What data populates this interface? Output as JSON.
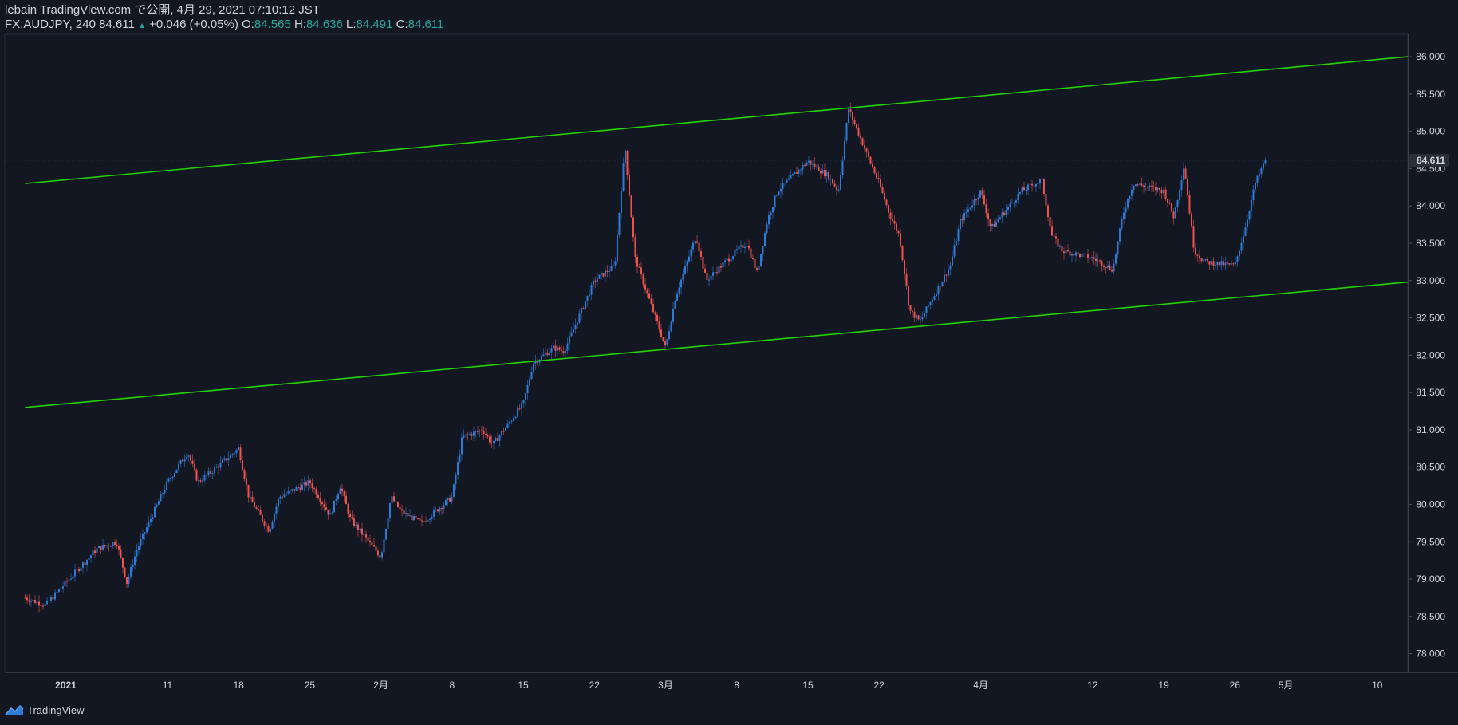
{
  "header": {
    "publisher": "lebain TradingView.com で公開, 4月 29, 2021 07:10:12 JST",
    "symbol": "FX:AUDJPY, 240",
    "last": "84.611",
    "change_arrow": "▲",
    "change": "+0.046 (+0.05%)",
    "o_label": "O:",
    "o": "84.565",
    "h_label": "H:",
    "h": "84.636",
    "l_label": "L:",
    "l": "84.491",
    "c_label": "C:",
    "c": "84.611"
  },
  "footer": {
    "brand": "TradingView",
    "logo_icon": "tradingview-logo-icon"
  },
  "colors": {
    "background": "#131722",
    "up": "#2e7bd6",
    "down": "#ef5350",
    "trendline": "#22d400",
    "text": "#d1d4dc",
    "teal": "#26a69a",
    "price_tag": "#2a2e39"
  },
  "chart_data": {
    "type": "candlestick",
    "title": "",
    "ylim": [
      77.75,
      86.3
    ],
    "y_ticks": [
      "78.000",
      "78.500",
      "79.000",
      "79.500",
      "80.000",
      "80.500",
      "81.000",
      "81.500",
      "82.000",
      "82.500",
      "83.000",
      "83.500",
      "84.000",
      "84.500",
      "85.000",
      "85.500",
      "86.000"
    ],
    "x_ticks": [
      "2021",
      "11",
      "18",
      "25",
      "2月",
      "8",
      "15",
      "22",
      "3月",
      "8",
      "15",
      "22",
      "4月",
      "12",
      "19",
      "26",
      "5月",
      "10"
    ],
    "last_price_label": "84.611",
    "trendlines": [
      {
        "name": "",
        "start": [
          "2020-12-28",
          84.3
        ],
        "end": [
          "2021-05-13",
          86.0
        ]
      },
      {
        "name": "",
        "start": [
          "2020-12-28",
          81.3
        ],
        "end": [
          "2021-05-13",
          82.98
        ]
      }
    ],
    "close_path": [
      [
        "2020-12-28",
        78.75
      ],
      [
        "2020-12-30",
        78.65
      ],
      [
        "2021-01-01",
        78.95
      ],
      [
        "2021-01-04",
        79.4
      ],
      [
        "2021-01-06",
        79.5
      ],
      [
        "2021-01-07",
        78.95
      ],
      [
        "2021-01-08",
        79.4
      ],
      [
        "2021-01-11",
        80.3
      ],
      [
        "2021-01-13",
        80.7
      ],
      [
        "2021-01-14",
        80.3
      ],
      [
        "2021-01-15",
        80.4
      ],
      [
        "2021-01-18",
        80.75
      ],
      [
        "2021-01-19",
        80.1
      ],
      [
        "2021-01-21",
        79.65
      ],
      [
        "2021-01-22",
        80.1
      ],
      [
        "2021-01-25",
        80.3
      ],
      [
        "2021-01-27",
        79.85
      ],
      [
        "2021-01-28",
        80.25
      ],
      [
        "2021-01-29",
        79.8
      ],
      [
        "2021-02-01",
        79.3
      ],
      [
        "2021-02-02",
        80.1
      ],
      [
        "2021-02-03",
        79.9
      ],
      [
        "2021-02-05",
        79.75
      ],
      [
        "2021-02-08",
        80.1
      ],
      [
        "2021-02-09",
        80.9
      ],
      [
        "2021-02-11",
        81.0
      ],
      [
        "2021-02-12",
        80.8
      ],
      [
        "2021-02-15",
        81.35
      ],
      [
        "2021-02-16",
        81.9
      ],
      [
        "2021-02-18",
        82.1
      ],
      [
        "2021-02-19",
        82.05
      ],
      [
        "2021-02-22",
        83.0
      ],
      [
        "2021-02-24",
        83.2
      ],
      [
        "2021-02-25",
        84.8
      ],
      [
        "2021-02-26",
        83.3
      ],
      [
        "2021-03-01",
        82.1
      ],
      [
        "2021-03-02",
        82.8
      ],
      [
        "2021-03-04",
        83.6
      ],
      [
        "2021-03-05",
        83.0
      ],
      [
        "2021-03-08",
        83.4
      ],
      [
        "2021-03-09",
        83.5
      ],
      [
        "2021-03-10",
        83.1
      ],
      [
        "2021-03-11",
        83.8
      ],
      [
        "2021-03-12",
        84.2
      ],
      [
        "2021-03-15",
        84.6
      ],
      [
        "2021-03-17",
        84.4
      ],
      [
        "2021-03-18",
        84.2
      ],
      [
        "2021-03-19",
        85.3
      ],
      [
        "2021-03-22",
        84.3
      ],
      [
        "2021-03-23",
        83.9
      ],
      [
        "2021-03-24",
        83.6
      ],
      [
        "2021-03-25",
        82.6
      ],
      [
        "2021-03-26",
        82.45
      ],
      [
        "2021-03-29",
        83.2
      ],
      [
        "2021-03-30",
        83.8
      ],
      [
        "2021-04-01",
        84.2
      ],
      [
        "2021-04-02",
        83.7
      ],
      [
        "2021-04-05",
        84.2
      ],
      [
        "2021-04-07",
        84.35
      ],
      [
        "2021-04-08",
        83.6
      ],
      [
        "2021-04-09",
        83.4
      ],
      [
        "2021-04-12",
        83.3
      ],
      [
        "2021-04-14",
        83.15
      ],
      [
        "2021-04-15",
        83.9
      ],
      [
        "2021-04-16",
        84.3
      ],
      [
        "2021-04-19",
        84.2
      ],
      [
        "2021-04-20",
        83.85
      ],
      [
        "2021-04-21",
        84.55
      ],
      [
        "2021-04-22",
        83.4
      ],
      [
        "2021-04-23",
        83.25
      ],
      [
        "2021-04-26",
        83.2
      ],
      [
        "2021-04-27",
        83.7
      ],
      [
        "2021-04-28",
        84.3
      ],
      [
        "2021-04-29",
        84.611
      ]
    ]
  }
}
